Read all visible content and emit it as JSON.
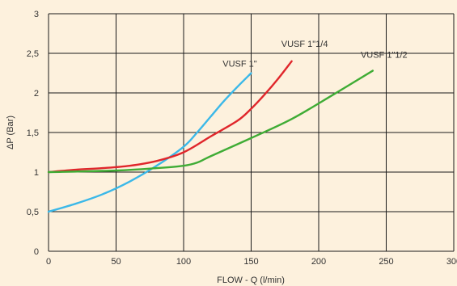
{
  "chart_data": {
    "type": "line",
    "title": "",
    "xlabel": "FLOW - Q (l/min)",
    "ylabel": "ΔP (Bar)",
    "xlim": [
      0,
      300
    ],
    "ylim": [
      0,
      3
    ],
    "x_ticks": [
      0,
      50,
      100,
      150,
      200,
      250,
      300
    ],
    "x_tick_labels": [
      "0",
      "50",
      "100",
      "150",
      "200",
      "250",
      "300"
    ],
    "y_ticks": [
      0,
      0.5,
      1,
      1.5,
      2,
      2.5,
      3
    ],
    "y_tick_labels": [
      "0",
      "0,5",
      "1",
      "1,5",
      "2",
      "2,5",
      "3"
    ],
    "grid": true,
    "colors": {
      "background": "#fdf1dd",
      "grid": "#1a1a1a"
    },
    "series": [
      {
        "name": "VUSF 1\"",
        "color": "#3bb8e8",
        "x": [
          0,
          20,
          40,
          60,
          80,
          100,
          110,
          120,
          130,
          140,
          150
        ],
        "y": [
          0.5,
          0.6,
          0.72,
          0.88,
          1.08,
          1.32,
          1.5,
          1.7,
          1.9,
          2.08,
          2.25
        ]
      },
      {
        "name": "VUSF 1\"1/4",
        "color": "#e0262b",
        "x": [
          0,
          20,
          40,
          60,
          80,
          100,
          120,
          140,
          150,
          160,
          170,
          180
        ],
        "y": [
          1.0,
          1.03,
          1.05,
          1.08,
          1.14,
          1.25,
          1.45,
          1.65,
          1.8,
          1.98,
          2.18,
          2.4
        ]
      },
      {
        "name": "VUSF 1\"1/2",
        "color": "#3fac35",
        "x": [
          0,
          50,
          80,
          100,
          110,
          120,
          150,
          180,
          210,
          240
        ],
        "y": [
          1.0,
          1.02,
          1.05,
          1.08,
          1.12,
          1.2,
          1.43,
          1.67,
          1.97,
          2.28
        ]
      }
    ]
  }
}
